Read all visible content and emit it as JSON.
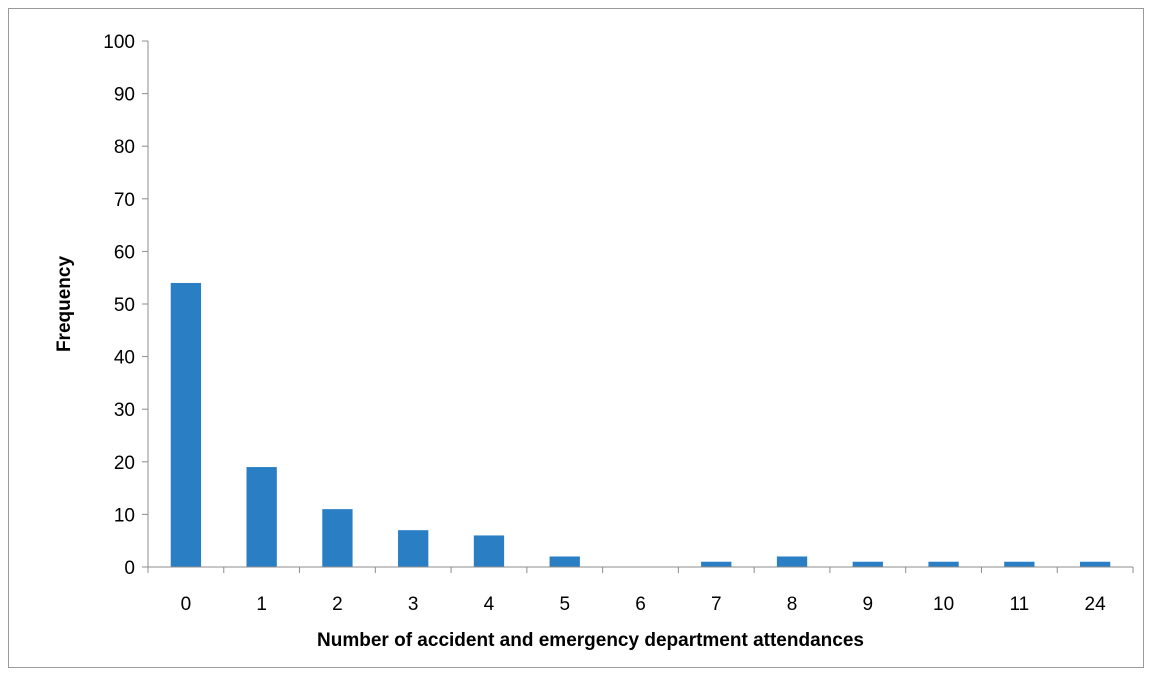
{
  "chart_data": {
    "type": "bar",
    "title": "",
    "xlabel": "Number of accident and emergency department attendances",
    "ylabel": "Frequency",
    "categories": [
      "0",
      "1",
      "2",
      "3",
      "4",
      "5",
      "6",
      "7",
      "8",
      "9",
      "10",
      "11",
      "24"
    ],
    "values": [
      54,
      19,
      11,
      7,
      6,
      2,
      0,
      1,
      2,
      1,
      1,
      1,
      1
    ],
    "ylim": [
      0,
      100
    ],
    "yticks": [
      0,
      10,
      20,
      30,
      40,
      50,
      60,
      70,
      80,
      90,
      100
    ],
    "grid": false,
    "legend": "none",
    "bar_color": "#2a7fc4"
  }
}
